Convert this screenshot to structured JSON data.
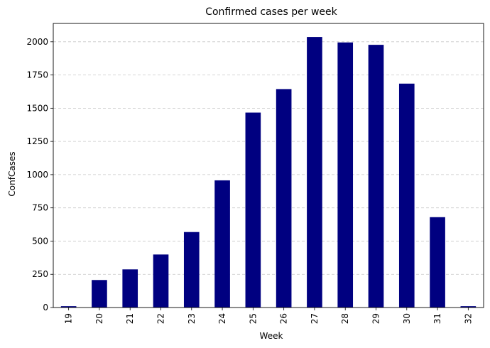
{
  "chart_data": {
    "type": "bar",
    "title": "Confirmed cases per week",
    "xlabel": "Week",
    "ylabel": "ConfCases",
    "categories": [
      "19",
      "20",
      "21",
      "22",
      "23",
      "24",
      "25",
      "26",
      "27",
      "28",
      "29",
      "30",
      "31",
      "32"
    ],
    "values": [
      10,
      207,
      287,
      399,
      568,
      957,
      1467,
      1644,
      2036,
      1995,
      1977,
      1685,
      680,
      10
    ],
    "ylim": [
      0,
      2138
    ],
    "yticks": [
      0,
      250,
      500,
      750,
      1000,
      1250,
      1500,
      1750,
      2000
    ],
    "grid": "y-dashed",
    "bar_color": "#000080",
    "grid_color": "#c7c7c7"
  }
}
